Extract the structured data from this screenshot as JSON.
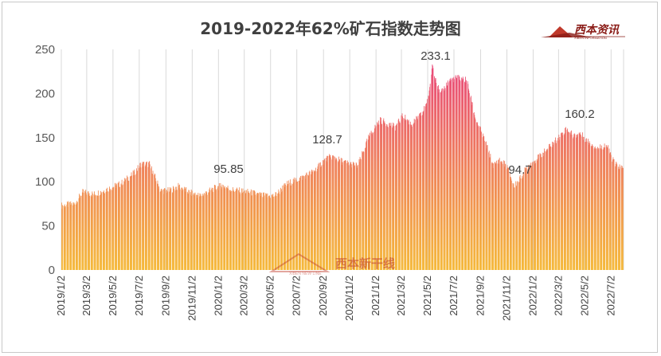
{
  "chart_data": {
    "type": "bar",
    "title": "2019-2022年62%矿石指数走势图",
    "xlabel": "",
    "ylabel": "",
    "ylim": [
      0,
      250
    ],
    "yticks": [
      0,
      50,
      100,
      150,
      200,
      250
    ],
    "grid": "vertical",
    "legend": "none",
    "colors": {
      "top": "#e8407e",
      "bottom": "#f5b93a",
      "title": "#404040",
      "axis": "#595959"
    },
    "x_tick_labels": [
      "2019/1/2",
      "2019/3/2",
      "2019/5/2",
      "2019/7/2",
      "2019/9/2",
      "2019/11/2",
      "2020/1/2",
      "2020/3/2",
      "2020/5/2",
      "2020/7/2",
      "2020/9/2",
      "2020/11/2",
      "2021/1/2",
      "2021/3/2",
      "2021/5/2",
      "2021/7/2",
      "2021/9/2",
      "2021/11/2",
      "2022/1/2",
      "2022/3/2",
      "2022/5/2",
      "2022/7/2"
    ],
    "series": [
      {
        "x_start": "2019/1/2",
        "x_end": "2022/7/31",
        "anchors": [
          [
            "2019/1/2",
            73
          ],
          [
            "2019/2/1",
            75
          ],
          [
            "2019/2/20",
            88
          ],
          [
            "2019/3/20",
            86
          ],
          [
            "2019/4/25",
            93
          ],
          [
            "2019/5/20",
            98
          ],
          [
            "2019/6/20",
            110
          ],
          [
            "2019/7/5",
            120
          ],
          [
            "2019/7/25",
            120
          ],
          [
            "2019/8/20",
            90
          ],
          [
            "2019/9/10",
            90
          ],
          [
            "2019/10/1",
            95
          ],
          [
            "2019/10/25",
            88
          ],
          [
            "2019/11/20",
            84
          ],
          [
            "2019/12/20",
            92
          ],
          [
            "2020/1/10",
            95.85
          ],
          [
            "2020/2/1",
            91
          ],
          [
            "2020/3/15",
            88
          ],
          [
            "2020/4/15",
            84
          ],
          [
            "2020/5/10",
            84
          ],
          [
            "2020/6/10",
            98
          ],
          [
            "2020/7/10",
            104
          ],
          [
            "2020/8/10",
            112
          ],
          [
            "2020/9/5",
            125
          ],
          [
            "2020/9/20",
            128.7
          ],
          [
            "2020/10/20",
            122
          ],
          [
            "2020/11/20",
            118
          ],
          [
            "2020/12/15",
            150
          ],
          [
            "2021/1/10",
            170
          ],
          [
            "2021/2/15",
            162
          ],
          [
            "2021/3/5",
            175
          ],
          [
            "2021/3/25",
            165
          ],
          [
            "2021/4/20",
            178
          ],
          [
            "2021/5/5",
            200
          ],
          [
            "2021/5/12",
            233.1
          ],
          [
            "2021/5/30",
            198
          ],
          [
            "2021/6/20",
            215
          ],
          [
            "2021/7/10",
            218
          ],
          [
            "2021/7/31",
            215
          ],
          [
            "2021/8/20",
            172
          ],
          [
            "2021/9/10",
            148
          ],
          [
            "2021/10/1",
            118
          ],
          [
            "2021/10/15",
            125
          ],
          [
            "2021/11/1",
            118
          ],
          [
            "2021/11/18",
            94.7
          ],
          [
            "2021/12/1",
            103
          ],
          [
            "2021/12/20",
            118
          ],
          [
            "2022/1/15",
            128
          ],
          [
            "2022/2/5",
            138
          ],
          [
            "2022/3/1",
            150
          ],
          [
            "2022/3/20",
            160.2
          ],
          [
            "2022/4/5",
            152
          ],
          [
            "2022/4/20",
            155
          ],
          [
            "2022/5/10",
            145
          ],
          [
            "2022/6/1",
            138
          ],
          [
            "2022/6/20",
            142
          ],
          [
            "2022/7/10",
            120
          ],
          [
            "2022/7/31",
            114
          ]
        ]
      }
    ],
    "annotations": [
      {
        "label": "95.85"
      },
      {
        "label": "128.7"
      },
      {
        "label": "233.1"
      },
      {
        "label": "94.7"
      },
      {
        "label": "160.2"
      }
    ]
  },
  "brand": {
    "logo_text": "西本资讯",
    "logo_sub": "XIBEN INFORMATION",
    "watermark_text": "西本新干线",
    "watermark_sub": "XIBEN NEW LINE"
  }
}
